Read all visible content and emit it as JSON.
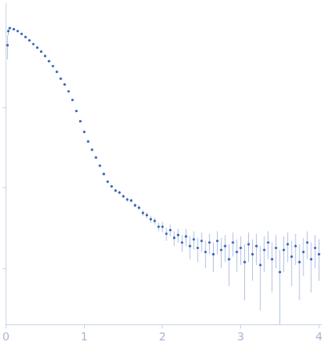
{
  "chart_data": {
    "type": "scatter",
    "log": "y",
    "grid": false,
    "tick_labels": "x",
    "color": "#3a66b8",
    "marker": "circle",
    "xlim": [
      0,
      4.03
    ],
    "xticks": [
      0,
      1,
      2,
      3,
      4
    ],
    "ylim": [
      0.002,
      20
    ],
    "yticks": [
      0.01,
      0.1,
      1
    ],
    "x": [
      0.02,
      0.03,
      0.05,
      0.1,
      0.15,
      0.2,
      0.25,
      0.3,
      0.35,
      0.4,
      0.45,
      0.5,
      0.55,
      0.6,
      0.65,
      0.7,
      0.75,
      0.8,
      0.85,
      0.9,
      0.95,
      1.0,
      1.05,
      1.1,
      1.15,
      1.2,
      1.25,
      1.3,
      1.35,
      1.4,
      1.45,
      1.5,
      1.55,
      1.6,
      1.65,
      1.7,
      1.75,
      1.8,
      1.85,
      1.9,
      1.95,
      2.0,
      2.05,
      2.1,
      2.15,
      2.2,
      2.25,
      2.3,
      2.35,
      2.4,
      2.45,
      2.5,
      2.55,
      2.6,
      2.65,
      2.7,
      2.75,
      2.8,
      2.85,
      2.9,
      2.95,
      3.0,
      3.05,
      3.1,
      3.15,
      3.2,
      3.25,
      3.3,
      3.35,
      3.4,
      3.45,
      3.5,
      3.55,
      3.6,
      3.65,
      3.7,
      3.75,
      3.8,
      3.85,
      3.9,
      3.95,
      4.0
    ],
    "values": [
      6.0,
      9.0,
      9.8,
      9.5,
      9.0,
      8.3,
      7.6,
      6.9,
      6.2,
      5.6,
      5.0,
      4.4,
      3.8,
      3.3,
      2.8,
      2.3,
      1.95,
      1.6,
      1.25,
      0.91,
      0.68,
      0.5,
      0.38,
      0.3,
      0.24,
      0.19,
      0.15,
      0.12,
      0.105,
      0.093,
      0.088,
      0.079,
      0.072,
      0.07,
      0.061,
      0.057,
      0.049,
      0.046,
      0.041,
      0.039,
      0.033,
      0.033,
      0.027,
      0.03,
      0.024,
      0.026,
      0.021,
      0.025,
      0.019,
      0.023,
      0.018,
      0.022,
      0.016,
      0.021,
      0.015,
      0.022,
      0.017,
      0.019,
      0.013,
      0.021,
      0.016,
      0.018,
      0.012,
      0.02,
      0.015,
      0.019,
      0.011,
      0.017,
      0.021,
      0.013,
      0.018,
      0.009,
      0.017,
      0.02,
      0.014,
      0.019,
      0.012,
      0.016,
      0.021,
      0.013,
      0.018,
      0.015
    ],
    "errors": [
      2.0,
      1.0,
      0.2,
      0.15,
      0.12,
      0.1,
      0.09,
      0.08,
      0.07,
      0.06,
      0.05,
      0.045,
      0.04,
      0.035,
      0.03,
      0.025,
      0.02,
      0.018,
      0.015,
      0.012,
      0.01,
      0.008,
      0.007,
      0.006,
      0.005,
      0.005,
      0.004,
      0.004,
      0.004,
      0.004,
      0.004,
      0.004,
      0.004,
      0.004,
      0.004,
      0.004,
      0.004,
      0.004,
      0.004,
      0.004,
      0.004,
      0.005,
      0.005,
      0.005,
      0.005,
      0.005,
      0.005,
      0.006,
      0.006,
      0.006,
      0.006,
      0.006,
      0.006,
      0.006,
      0.006,
      0.007,
      0.007,
      0.007,
      0.007,
      0.007,
      0.007,
      0.007,
      0.008,
      0.008,
      0.008,
      0.008,
      0.008,
      0.008,
      0.008,
      0.008,
      0.008,
      0.008,
      0.008,
      0.008,
      0.008,
      0.008,
      0.008,
      0.008,
      0.008,
      0.008,
      0.008,
      0.008
    ]
  }
}
